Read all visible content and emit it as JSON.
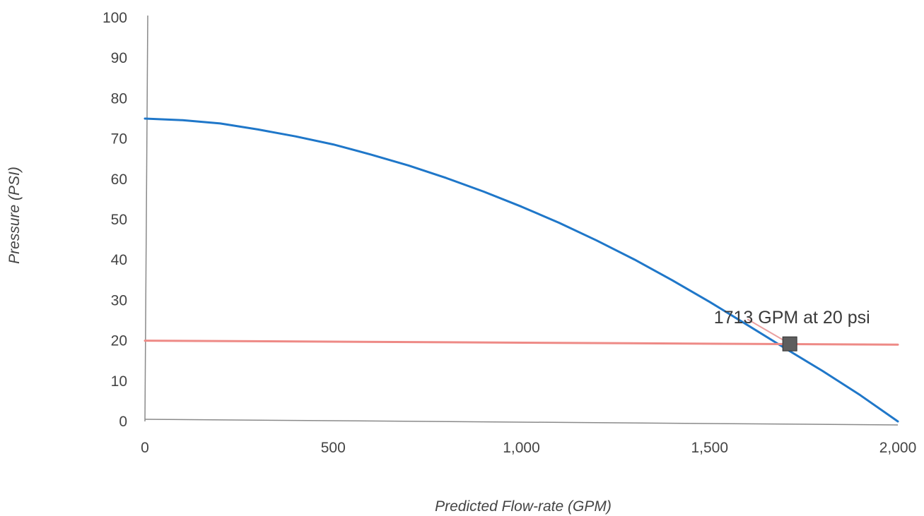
{
  "chart_data": {
    "type": "line",
    "title": "",
    "xlabel": "Predicted Flow-rate (GPM)",
    "ylabel": "Pressure (PSI)",
    "xlim": [
      0,
      2000
    ],
    "ylim": [
      0,
      100
    ],
    "x_ticks": [
      {
        "value": 0,
        "label": "0"
      },
      {
        "value": 500,
        "label": "500"
      },
      {
        "value": 1000,
        "label": "1,000"
      },
      {
        "value": 1500,
        "label": "1,500"
      },
      {
        "value": 2000,
        "label": "2,000"
      }
    ],
    "y_ticks": [
      {
        "value": 0,
        "label": "0"
      },
      {
        "value": 10,
        "label": "10"
      },
      {
        "value": 20,
        "label": "20"
      },
      {
        "value": 30,
        "label": "30"
      },
      {
        "value": 40,
        "label": "40"
      },
      {
        "value": 50,
        "label": "50"
      },
      {
        "value": 60,
        "label": "60"
      },
      {
        "value": 70,
        "label": "70"
      },
      {
        "value": 80,
        "label": "80"
      },
      {
        "value": 90,
        "label": "90"
      },
      {
        "value": 100,
        "label": "100"
      }
    ],
    "grid": false,
    "legend": "none",
    "series": [
      {
        "color": "#1f77c9",
        "points": [
          [
            0,
            75
          ],
          [
            100,
            74.6
          ],
          [
            200,
            73.8
          ],
          [
            300,
            72.3
          ],
          [
            400,
            70.6
          ],
          [
            500,
            68.6
          ],
          [
            600,
            66.1
          ],
          [
            700,
            63.4
          ],
          [
            800,
            60.3
          ],
          [
            900,
            56.9
          ],
          [
            1000,
            53.2
          ],
          [
            1100,
            49.2
          ],
          [
            1200,
            44.8
          ],
          [
            1300,
            40.1
          ],
          [
            1400,
            35.0
          ],
          [
            1500,
            29.6
          ],
          [
            1600,
            23.9
          ],
          [
            1713,
            17.4
          ],
          [
            1800,
            12.5
          ],
          [
            1900,
            6.5
          ],
          [
            2000,
            0
          ]
        ]
      },
      {
        "color": "#ee8a86",
        "points": [
          [
            0,
            20
          ],
          [
            2000,
            19
          ]
        ]
      }
    ],
    "marker": {
      "x": 1713,
      "y": 19.2,
      "color": "#5e5e5e"
    },
    "annotation": {
      "text": "1713 GPM at 20 psi",
      "x": 1713,
      "y": 19.2
    }
  }
}
